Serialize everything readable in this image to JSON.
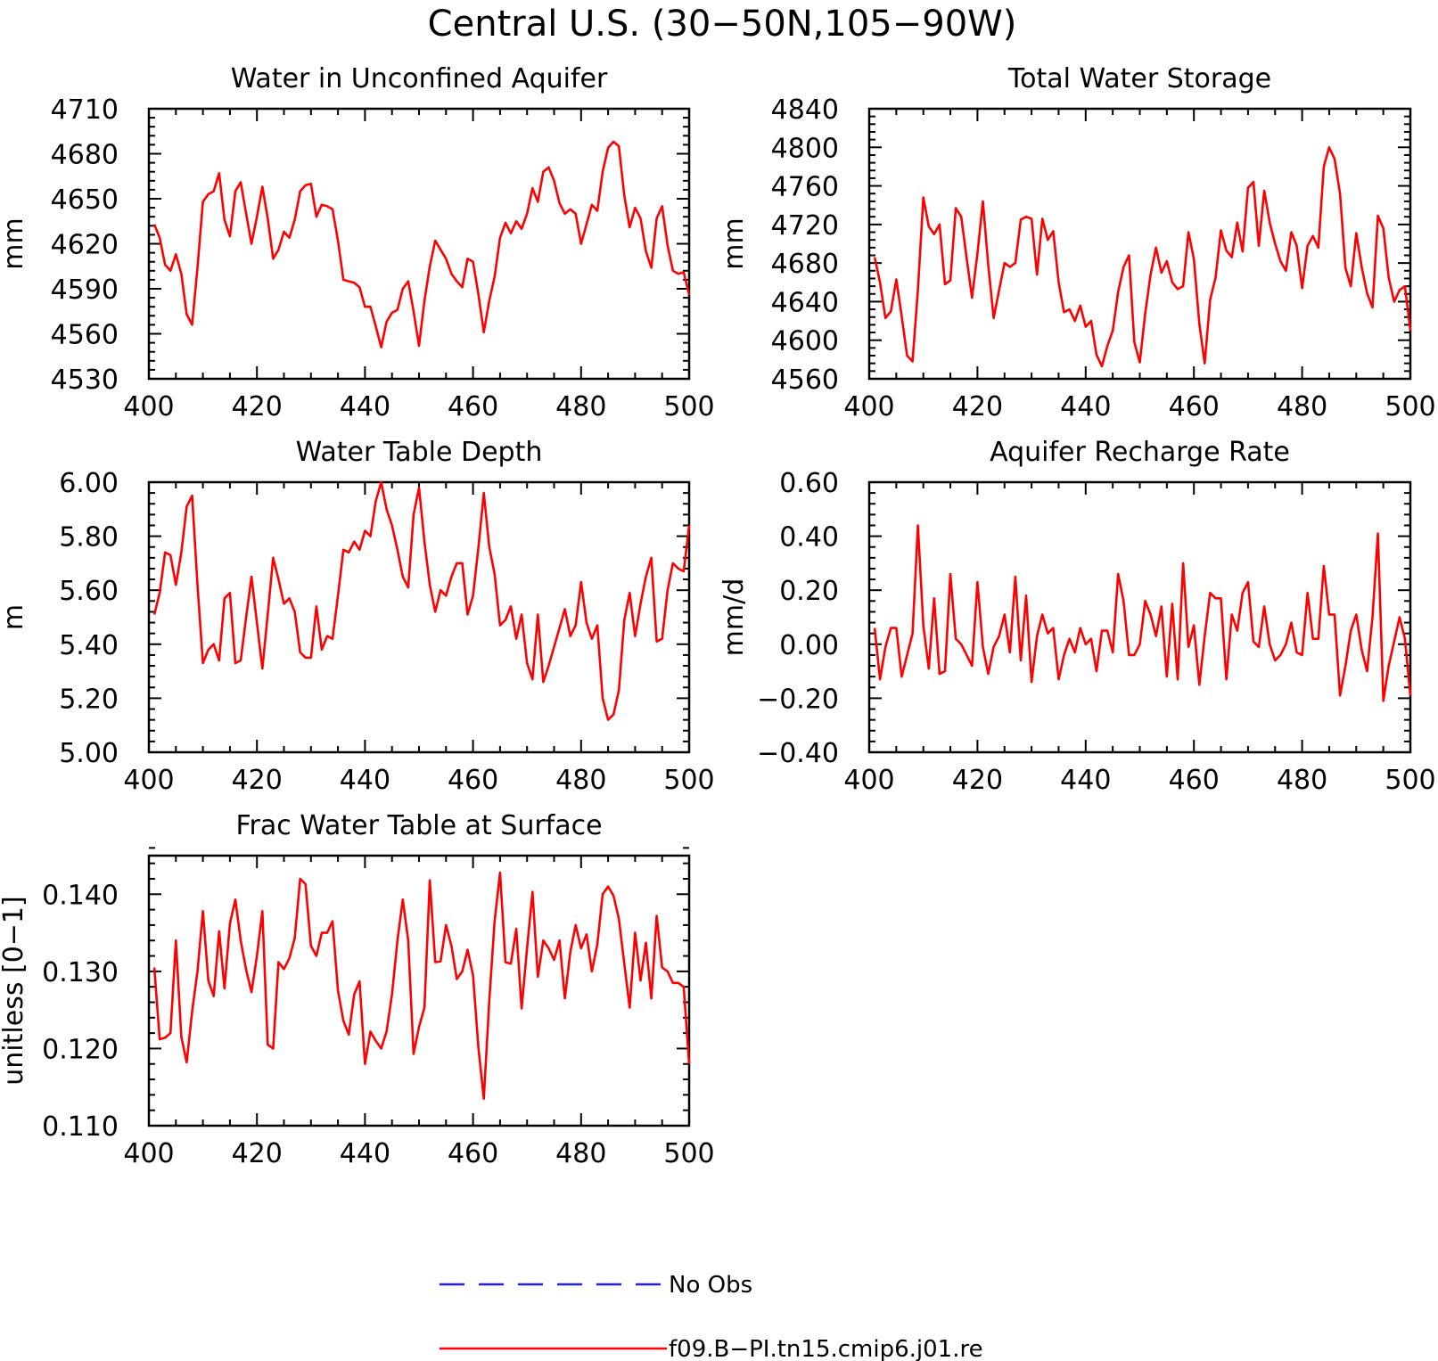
{
  "title": "Central U.S. (30−50N,105−90W)",
  "colors": {
    "model": "#ff0000",
    "obs": "#2222cc",
    "axis": "#000000"
  },
  "legend": [
    {
      "label": "No Obs",
      "color": "#2222cc",
      "style": "dashed"
    },
    {
      "label": "f09.B−PI.tn15.cmip6.j01.re",
      "color": "#ff0000",
      "style": "solid"
    }
  ],
  "chart_data": [
    {
      "type": "line",
      "title": "Water in Unconfined Aquifer",
      "xlabel": "",
      "ylabel": "mm",
      "xlim": [
        400,
        500
      ],
      "ylim": [
        4530,
        4710
      ],
      "xticks": [
        400,
        420,
        440,
        460,
        480,
        500
      ],
      "xtick_labels": [
        "400",
        "420",
        "440",
        "460",
        "480",
        "500"
      ],
      "yticks": [
        4530,
        4560,
        4590,
        4620,
        4650,
        4680,
        4710
      ],
      "ytick_labels": [
        "4530",
        "4560",
        "4590",
        "4620",
        "4650",
        "4680",
        "4710"
      ],
      "x_start": 401,
      "x_step": 1,
      "series": [
        {
          "values": [
            4633,
            4624,
            4606,
            4602,
            4613,
            4600,
            4573,
            4566,
            4604,
            4648,
            4653,
            4655,
            4667,
            4636,
            4625,
            4655,
            4661,
            4640,
            4620,
            4638,
            4658,
            4637,
            4610,
            4616,
            4628,
            4624,
            4636,
            4655,
            4659,
            4660,
            4638,
            4646,
            4645,
            4643,
            4622,
            4596,
            4595,
            4594,
            4591,
            4578,
            4578,
            4565,
            4551,
            4568,
            4574,
            4576,
            4590,
            4595,
            4575,
            4552,
            4582,
            4605,
            4622,
            4616,
            4610,
            4600,
            4595,
            4591,
            4610,
            4608,
            4586,
            4561,
            4582,
            4598,
            4624,
            4634,
            4627,
            4635,
            4630,
            4640,
            4657,
            4648,
            4668,
            4671,
            4662,
            4647,
            4640,
            4643,
            4640,
            4620,
            4633,
            4646,
            4642,
            4668,
            4684,
            4688,
            4685,
            4652,
            4631,
            4644,
            4637,
            4615,
            4604,
            4637,
            4645,
            4619,
            4602,
            4600,
            4601,
            4586
          ]
        }
      ]
    },
    {
      "type": "line",
      "title": "Total Water Storage",
      "xlabel": "",
      "ylabel": "mm",
      "xlim": [
        400,
        500
      ],
      "ylim": [
        4560,
        4840
      ],
      "xticks": [
        400,
        420,
        440,
        460,
        480,
        500
      ],
      "xtick_labels": [
        "400",
        "420",
        "440",
        "460",
        "480",
        "500"
      ],
      "yticks": [
        4560,
        4600,
        4640,
        4680,
        4720,
        4760,
        4800,
        4840
      ],
      "ytick_labels": [
        "4560",
        "4600",
        "4640",
        "4680",
        "4720",
        "4760",
        "4800",
        "4840"
      ],
      "x_start": 401,
      "x_step": 1,
      "series": [
        {
          "values": [
            4686,
            4660,
            4623,
            4630,
            4663,
            4625,
            4584,
            4578,
            4652,
            4748,
            4718,
            4710,
            4720,
            4658,
            4662,
            4737,
            4728,
            4685,
            4644,
            4690,
            4744,
            4678,
            4623,
            4652,
            4680,
            4676,
            4680,
            4725,
            4728,
            4726,
            4668,
            4726,
            4704,
            4713,
            4660,
            4629,
            4632,
            4620,
            4636,
            4614,
            4620,
            4585,
            4573,
            4594,
            4610,
            4650,
            4676,
            4688,
            4598,
            4577,
            4628,
            4668,
            4696,
            4670,
            4682,
            4660,
            4653,
            4656,
            4712,
            4684,
            4617,
            4576,
            4642,
            4665,
            4714,
            4693,
            4686,
            4722,
            4692,
            4758,
            4764,
            4698,
            4755,
            4722,
            4700,
            4682,
            4672,
            4712,
            4698,
            4654,
            4698,
            4708,
            4696,
            4780,
            4800,
            4788,
            4752,
            4675,
            4656,
            4711,
            4676,
            4649,
            4634,
            4729,
            4716,
            4665,
            4640,
            4652,
            4656,
            4610
          ]
        }
      ]
    },
    {
      "type": "line",
      "title": "Water Table Depth",
      "xlabel": "",
      "ylabel": "m",
      "xlim": [
        400,
        500
      ],
      "ylim": [
        5.0,
        6.0
      ],
      "xticks": [
        400,
        420,
        440,
        460,
        480,
        500
      ],
      "xtick_labels": [
        "400",
        "420",
        "440",
        "460",
        "480",
        "500"
      ],
      "yticks": [
        5.0,
        5.2,
        5.4,
        5.6,
        5.8,
        6.0
      ],
      "ytick_labels": [
        "5.00",
        "5.20",
        "5.40",
        "5.60",
        "5.80",
        "6.00"
      ],
      "x_start": 401,
      "x_step": 1,
      "series": [
        {
          "values": [
            5.51,
            5.59,
            5.74,
            5.73,
            5.62,
            5.74,
            5.91,
            5.95,
            5.62,
            5.33,
            5.38,
            5.4,
            5.34,
            5.57,
            5.59,
            5.33,
            5.34,
            5.5,
            5.65,
            5.48,
            5.31,
            5.51,
            5.72,
            5.64,
            5.55,
            5.57,
            5.52,
            5.37,
            5.35,
            5.35,
            5.54,
            5.38,
            5.43,
            5.42,
            5.58,
            5.75,
            5.74,
            5.78,
            5.75,
            5.82,
            5.8,
            5.93,
            6.0,
            5.9,
            5.84,
            5.75,
            5.65,
            5.61,
            5.88,
            5.98,
            5.78,
            5.62,
            5.52,
            5.6,
            5.58,
            5.65,
            5.7,
            5.7,
            5.51,
            5.58,
            5.76,
            5.96,
            5.76,
            5.66,
            5.47,
            5.49,
            5.54,
            5.42,
            5.51,
            5.33,
            5.27,
            5.51,
            5.26,
            5.32,
            5.39,
            5.46,
            5.53,
            5.43,
            5.47,
            5.63,
            5.48,
            5.42,
            5.47,
            5.2,
            5.12,
            5.14,
            5.23,
            5.49,
            5.59,
            5.43,
            5.55,
            5.65,
            5.72,
            5.41,
            5.42,
            5.6,
            5.7,
            5.68,
            5.67,
            5.84
          ]
        }
      ]
    },
    {
      "type": "line",
      "title": "Aquifer Recharge Rate",
      "xlabel": "",
      "ylabel": "mm/d",
      "xlim": [
        400,
        500
      ],
      "ylim": [
        -0.4,
        0.6
      ],
      "xticks": [
        400,
        420,
        440,
        460,
        480,
        500
      ],
      "xtick_labels": [
        "400",
        "420",
        "440",
        "460",
        "480",
        "500"
      ],
      "yticks": [
        -0.4,
        -0.2,
        0.0,
        0.2,
        0.4,
        0.6
      ],
      "ytick_labels": [
        "−0.40",
        "−0.20",
        "0.00",
        "0.20",
        "0.40",
        "0.60"
      ],
      "x_start": 401,
      "x_step": 1,
      "series": [
        {
          "values": [
            0.06,
            -0.13,
            -0.01,
            0.06,
            0.06,
            -0.12,
            -0.04,
            0.04,
            0.44,
            0.07,
            -0.09,
            0.17,
            -0.11,
            -0.1,
            0.26,
            0.02,
            0.0,
            -0.04,
            -0.08,
            0.23,
            -0.01,
            -0.11,
            -0.01,
            0.03,
            0.11,
            -0.03,
            0.25,
            -0.06,
            0.18,
            -0.14,
            0.03,
            0.11,
            0.04,
            0.06,
            -0.13,
            -0.04,
            0.02,
            -0.03,
            0.06,
            0.0,
            0.02,
            -0.1,
            0.05,
            0.05,
            -0.03,
            0.26,
            0.16,
            -0.04,
            -0.04,
            0.0,
            0.16,
            0.11,
            0.03,
            0.14,
            -0.12,
            0.15,
            -0.13,
            0.3,
            -0.01,
            0.07,
            -0.15,
            0.03,
            0.19,
            0.17,
            0.17,
            -0.13,
            0.11,
            0.05,
            0.19,
            0.23,
            0.01,
            -0.01,
            0.14,
            0.0,
            -0.06,
            -0.04,
            0.0,
            0.08,
            -0.03,
            -0.04,
            0.19,
            0.02,
            0.02,
            0.29,
            0.11,
            0.11,
            -0.19,
            -0.08,
            0.05,
            0.11,
            -0.02,
            -0.1,
            0.1,
            0.41,
            -0.21,
            -0.08,
            0.01,
            0.1,
            0.02,
            -0.19
          ]
        }
      ]
    },
    {
      "type": "line",
      "title": "Frac Water Table at Surface",
      "xlabel": "",
      "ylabel": "unitless [0−1]",
      "xlim": [
        400,
        500
      ],
      "ylim": [
        0.11,
        0.145
      ],
      "xticks": [
        400,
        420,
        440,
        460,
        480,
        500
      ],
      "xtick_labels": [
        "400",
        "420",
        "440",
        "460",
        "480",
        "500"
      ],
      "yticks": [
        0.11,
        0.12,
        0.13,
        0.14
      ],
      "ytick_labels": [
        "0.110",
        "0.120",
        "0.130",
        "0.140"
      ],
      "x_start": 401,
      "x_step": 1,
      "series": [
        {
          "values": [
            0.1305,
            0.1212,
            0.1214,
            0.122,
            0.134,
            0.1215,
            0.1182,
            0.1248,
            0.13,
            0.1378,
            0.1288,
            0.1268,
            0.1352,
            0.1278,
            0.1362,
            0.1393,
            0.134,
            0.1302,
            0.1273,
            0.132,
            0.1378,
            0.1205,
            0.12,
            0.1312,
            0.1303,
            0.1317,
            0.1343,
            0.142,
            0.1413,
            0.1333,
            0.132,
            0.135,
            0.135,
            0.1365,
            0.1275,
            0.1236,
            0.1218,
            0.127,
            0.1287,
            0.118,
            0.1222,
            0.121,
            0.12,
            0.1222,
            0.127,
            0.134,
            0.1393,
            0.134,
            0.1193,
            0.1228,
            0.1253,
            0.1418,
            0.1312,
            0.1313,
            0.136,
            0.1333,
            0.129,
            0.13,
            0.1328,
            0.1295,
            0.12,
            0.1135,
            0.1262,
            0.1365,
            0.1428,
            0.1312,
            0.131,
            0.1355,
            0.1252,
            0.133,
            0.1403,
            0.1293,
            0.134,
            0.133,
            0.1315,
            0.134,
            0.1265,
            0.1325,
            0.136,
            0.133,
            0.1348,
            0.13,
            0.1335,
            0.14,
            0.141,
            0.1398,
            0.1368,
            0.131,
            0.1253,
            0.135,
            0.1288,
            0.1337,
            0.1265,
            0.1372,
            0.1305,
            0.13,
            0.1285,
            0.1285,
            0.128,
            0.118
          ]
        }
      ]
    }
  ]
}
